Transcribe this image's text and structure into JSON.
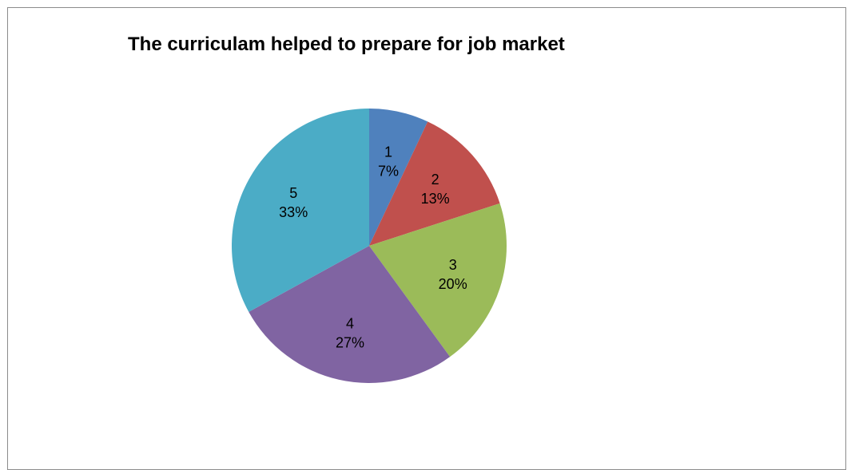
{
  "chart_data": {
    "type": "pie",
    "title": "The curriculam helped to prepare for job market",
    "categories": [
      "1",
      "2",
      "3",
      "4",
      "5"
    ],
    "values": [
      7,
      13,
      20,
      27,
      33
    ],
    "percent_labels": [
      "7%",
      "13%",
      "20%",
      "27%",
      "33%"
    ],
    "colors": [
      "#4f81bd",
      "#c0504d",
      "#9bbb59",
      "#8064a2",
      "#4bacc6"
    ],
    "start_angle": "12 o'clock",
    "direction": "clockwise",
    "legend": "none",
    "data_labels": "category and percentage inside slices"
  }
}
